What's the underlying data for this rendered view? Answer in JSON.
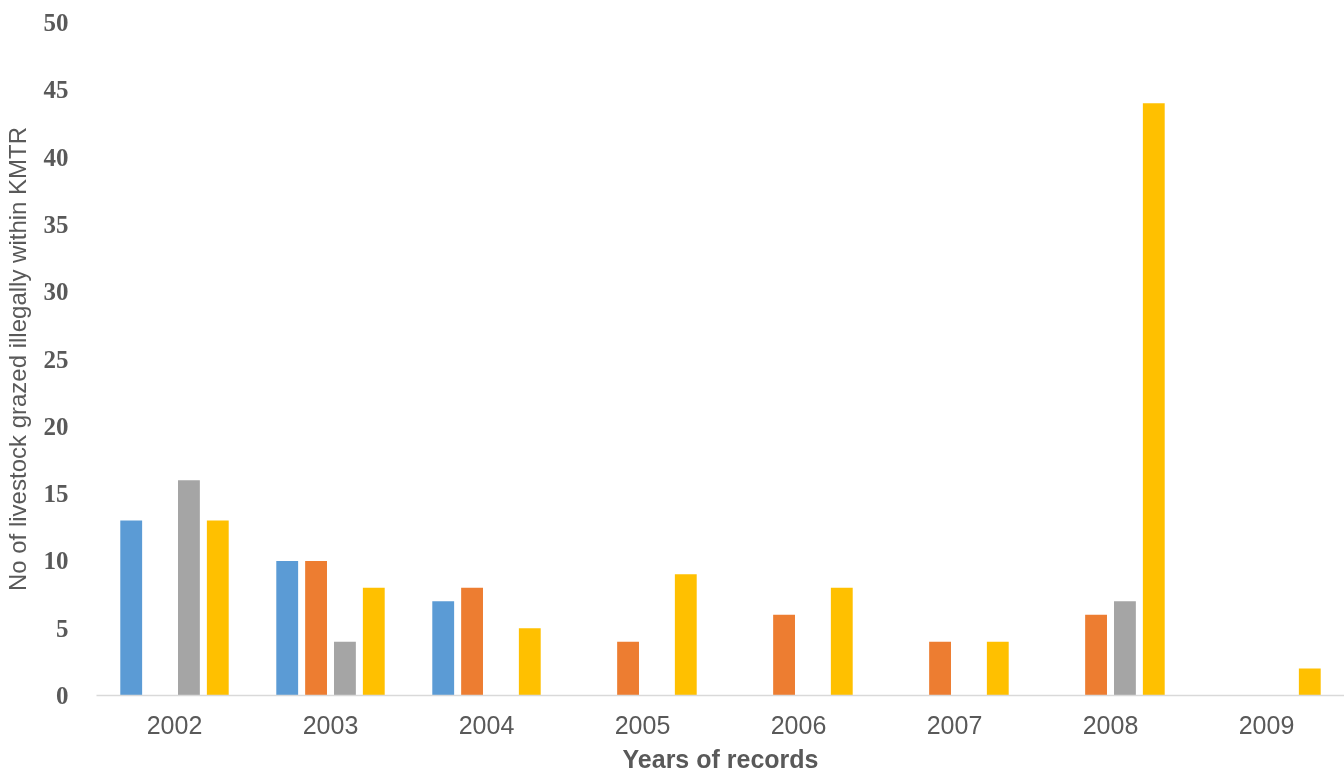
{
  "chart_data": {
    "type": "bar",
    "xlabel": "Years of records",
    "ylabel": "No of livestock grazed illegally within KMTR",
    "categories": [
      "2002",
      "2003",
      "2004",
      "2005",
      "2006",
      "2007",
      "2008",
      "2009"
    ],
    "series": [
      {
        "color": "#5b9bd5",
        "values": [
          13,
          10,
          7,
          null,
          null,
          null,
          null,
          null
        ]
      },
      {
        "color": "#ed7d31",
        "values": [
          null,
          10,
          8,
          4,
          6,
          4,
          6,
          null
        ]
      },
      {
        "color": "#a5a5a5",
        "values": [
          16,
          4,
          null,
          null,
          null,
          null,
          7,
          null
        ]
      },
      {
        "color": "#ffc000",
        "values": [
          13,
          8,
          5,
          9,
          8,
          4,
          44,
          2
        ]
      }
    ],
    "ylim": [
      0,
      50
    ],
    "yticks": [
      0,
      5,
      10,
      15,
      20,
      25,
      30,
      35,
      40,
      45,
      50
    ]
  }
}
